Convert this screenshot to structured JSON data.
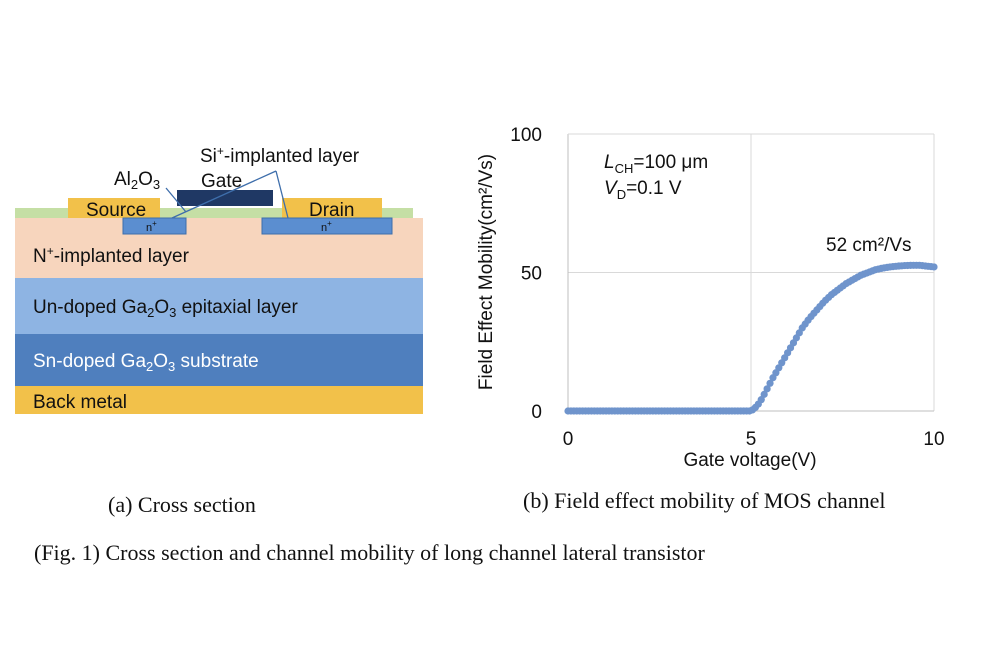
{
  "cross_section": {
    "labels": {
      "al2o3": "Al",
      "al2o3_sub1": "2",
      "al2o3_o": "O",
      "al2o3_sub2": "3",
      "si_implanted": "Si",
      "si_sup": "+",
      "si_rest": "-implanted layer",
      "gate": "Gate",
      "source": "Source",
      "drain": "Drain",
      "n_plus_left": "n",
      "n_plus_right": "n",
      "n_sup": "+",
      "n_implanted": "N",
      "n_implanted_sup": "+",
      "n_implanted_rest": "-implanted layer",
      "undoped_pre": "Un-doped Ga",
      "undoped_sub1": "2",
      "undoped_o": "O",
      "undoped_sub2": "3",
      "undoped_rest": " epitaxial layer",
      "sn_pre": "Sn-doped Ga",
      "sn_sub1": "2",
      "sn_o": "O",
      "sn_sub2": "3",
      "sn_rest": " substrate",
      "back_metal": "Back metal"
    },
    "colors": {
      "al2o3": "#c5dfa5",
      "gate": "#1f3864",
      "metal": "#f2c14a",
      "n_plus": "#5b8ed0",
      "n_implanted": "#f7d5bd",
      "undoped": "#8eb4e3",
      "sn_doped": "#4f7fbe",
      "back_metal": "#f2c14a"
    }
  },
  "captions": {
    "a": "(a) Cross section",
    "b": "(b) Field effect mobility of MOS channel",
    "fig": "(Fig. 1) Cross section and channel mobility of long channel lateral transistor"
  },
  "chart_data": {
    "type": "scatter",
    "xlabel": "Gate voltage(V)",
    "ylabel": "Field Effect Mobility(cm²/Vs)",
    "xlim": [
      0,
      10
    ],
    "ylim": [
      0,
      100
    ],
    "xticks": [
      "0",
      "5",
      "10"
    ],
    "yticks": [
      "0",
      "50",
      "100"
    ],
    "grid": true,
    "color": "#6f94cc",
    "annotations": {
      "lch": "L",
      "lch_sub": "CH",
      "lch_val": "=100 μm",
      "vd": "V",
      "vd_sub": "D",
      "vd_val": "=0.1 V",
      "peak": "52 cm²/Vs"
    },
    "x": [
      0,
      0.5,
      1,
      1.5,
      2,
      2.5,
      3,
      3.5,
      4,
      4.5,
      5,
      5.1,
      5.2,
      5.3,
      5.4,
      5.5,
      5.6,
      5.8,
      6,
      6.2,
      6.4,
      6.6,
      6.8,
      7,
      7.2,
      7.4,
      7.6,
      7.8,
      8,
      8.2,
      8.4,
      8.6,
      8.8,
      9,
      9.2,
      9.4,
      9.6,
      9.8,
      10
    ],
    "y": [
      0,
      0,
      0,
      0,
      0,
      0,
      0,
      0,
      0,
      0,
      0,
      1,
      2.5,
      4.5,
      7,
      9.5,
      12,
      16.5,
      21,
      25.5,
      30,
      33.5,
      36.5,
      39.5,
      42,
      44,
      46,
      47.5,
      49,
      50,
      51,
      51.6,
      52,
      52.3,
      52.5,
      52.6,
      52.6,
      52.3,
      52
    ]
  }
}
